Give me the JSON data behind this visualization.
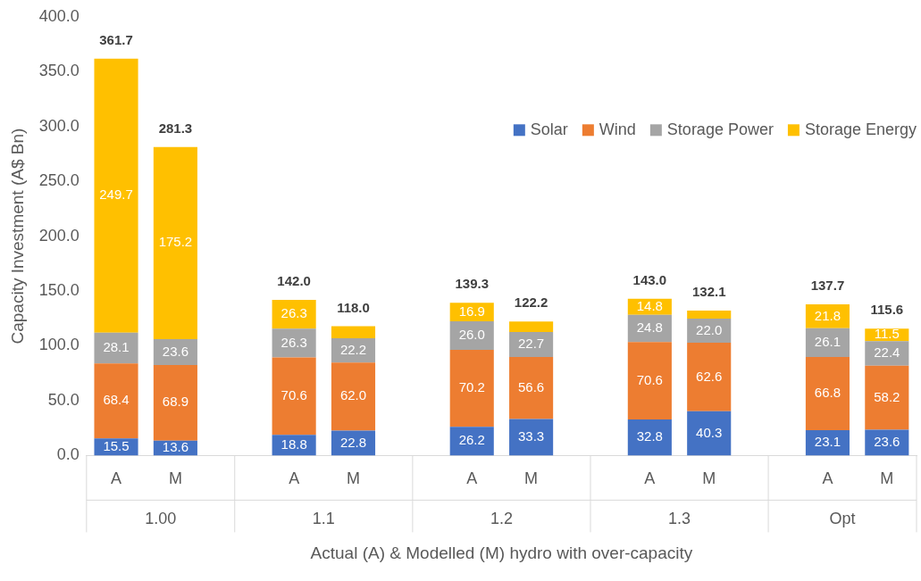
{
  "chart_data": {
    "type": "bar",
    "stacked": true,
    "ylabel": "Capacity Investment (A$ Bn)",
    "xlabel": "Actual (A) & Modelled (M) hydro with over-capacity",
    "categories": [
      "A",
      "M",
      null,
      "A",
      "M",
      null,
      "A",
      "M",
      null,
      "A",
      "M",
      null,
      "A",
      "M"
    ],
    "annotations": [
      "1.00",
      "1.1",
      "1.2",
      "1.3",
      "Opt"
    ],
    "series": [
      {
        "name": "Solar",
        "color": "#4472c4",
        "values": [
          15.5,
          13.6,
          null,
          18.8,
          22.8,
          null,
          26.2,
          33.3,
          null,
          32.8,
          40.3,
          null,
          23.1,
          23.6
        ],
        "value_labels": [
          "15.5",
          "13.6",
          null,
          "18.8",
          "22.8",
          null,
          "26.2",
          "33.3",
          null,
          "32.8",
          "40.3",
          null,
          "23.1",
          "23.6"
        ]
      },
      {
        "name": "Wind",
        "color": "#ed7d31",
        "values": [
          68.4,
          68.9,
          null,
          70.6,
          62.0,
          null,
          70.2,
          56.6,
          null,
          70.6,
          62.6,
          null,
          66.8,
          58.2
        ],
        "value_labels": [
          "68.4",
          "68.9",
          null,
          "70.6",
          "62.0",
          null,
          "70.2",
          "56.6",
          null,
          "70.6",
          "62.6",
          null,
          "66.8",
          "58.2"
        ]
      },
      {
        "name": "Storage Power",
        "color": "#a5a5a5",
        "values": [
          28.1,
          23.6,
          null,
          26.3,
          22.2,
          null,
          26.0,
          22.7,
          null,
          24.8,
          22.0,
          null,
          26.1,
          22.4
        ],
        "value_labels": [
          "28.1",
          "23.6",
          null,
          "26.3",
          "22.2",
          null,
          "26.0",
          "22.7",
          null,
          "24.8",
          "22.0",
          null,
          "26.1",
          "22.4"
        ]
      },
      {
        "name": "Storage Energy",
        "color": "#ffc000",
        "values": [
          249.7,
          175.2,
          null,
          26.3,
          11.0,
          null,
          16.9,
          9.6,
          null,
          14.8,
          7.2,
          null,
          21.8,
          11.5
        ],
        "value_labels": [
          "249.7",
          "175.2",
          null,
          "26.3",
          null,
          null,
          "16.9",
          null,
          null,
          "14.8",
          null,
          null,
          "21.8",
          "11.5"
        ]
      }
    ],
    "totals": [
      "361.7",
      "281.3",
      null,
      "142.0",
      "118.0",
      null,
      "139.3",
      "122.2",
      null,
      "143.0",
      "132.1",
      null,
      "137.7",
      "115.6"
    ],
    "ylim": [
      0,
      400
    ],
    "yticks": [
      {
        "value": 0,
        "label": "0.0"
      },
      {
        "value": 50,
        "label": "50.0"
      },
      {
        "value": 100,
        "label": "100.0"
      },
      {
        "value": 150,
        "label": "150.0"
      },
      {
        "value": 200,
        "label": "200.0"
      },
      {
        "value": 250,
        "label": "250.0"
      },
      {
        "value": 300,
        "label": "300.0"
      },
      {
        "value": 350,
        "label": "350.0"
      },
      {
        "value": 400,
        "label": "400.0"
      }
    ],
    "grid": false,
    "legend": "top right"
  }
}
